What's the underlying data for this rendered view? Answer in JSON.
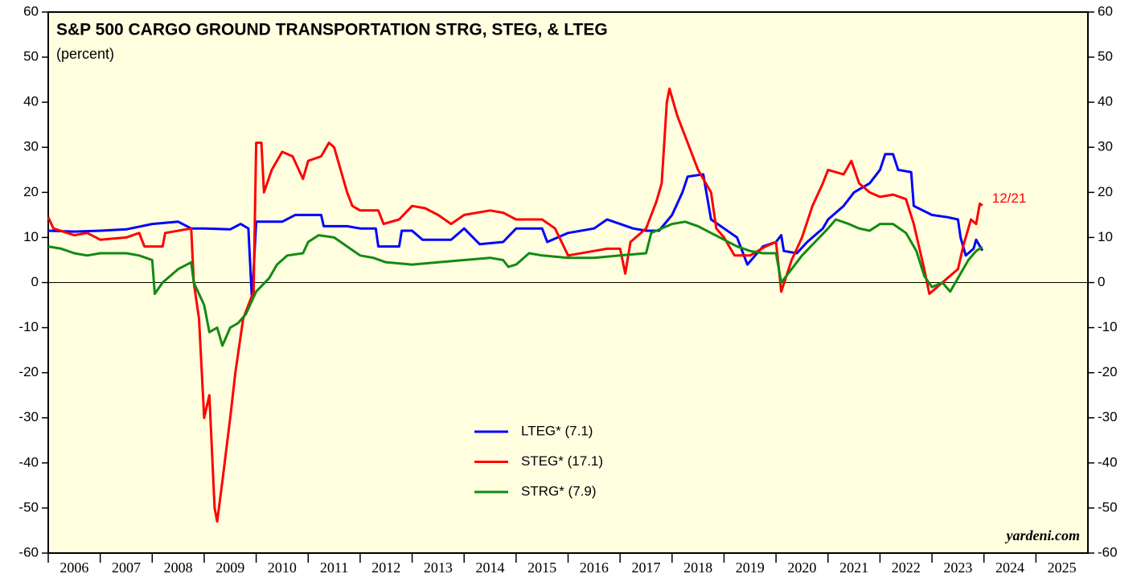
{
  "chart_data": {
    "type": "line",
    "title": "S&P 500 CARGO GROUND TRANSPORTATION STRG, STEG, & LTEG",
    "subtitle": "(percent)",
    "annotation": "12/21",
    "source": "yardeni.com",
    "xlim": [
      2006,
      2026
    ],
    "xticks": [
      2006,
      2007,
      2008,
      2009,
      2010,
      2011,
      2012,
      2013,
      2014,
      2015,
      2016,
      2017,
      2018,
      2019,
      2020,
      2021,
      2022,
      2023,
      2024,
      2025
    ],
    "ylim": [
      -60,
      60
    ],
    "yticks": [
      -60,
      -50,
      -40,
      -30,
      -20,
      -10,
      0,
      10,
      20,
      30,
      40,
      50,
      60
    ],
    "legend": "bottom-center",
    "series": [
      {
        "name": "LTEG* (7.1)",
        "color": "#0000ff",
        "x": [
          2006.0,
          2006.5,
          2007.0,
          2007.5,
          2008.0,
          2008.5,
          2008.75,
          2009.0,
          2009.5,
          2009.7,
          2009.85,
          2009.92,
          2010.0,
          2010.5,
          2010.75,
          2011.0,
          2011.25,
          2011.3,
          2011.75,
          2012.0,
          2012.3,
          2012.35,
          2012.75,
          2012.8,
          2013.0,
          2013.2,
          2013.75,
          2014.0,
          2014.3,
          2014.75,
          2015.0,
          2015.5,
          2015.6,
          2016.0,
          2016.5,
          2016.75,
          2017.0,
          2017.25,
          2017.5,
          2017.75,
          2018.0,
          2018.2,
          2018.3,
          2018.6,
          2018.75,
          2019.0,
          2019.25,
          2019.45,
          2019.6,
          2019.75,
          2020.0,
          2020.1,
          2020.15,
          2020.4,
          2020.6,
          2020.9,
          2021.0,
          2021.3,
          2021.5,
          2021.8,
          2022.0,
          2022.1,
          2022.25,
          2022.35,
          2022.6,
          2022.65,
          2023.0,
          2023.3,
          2023.5,
          2023.55,
          2023.65,
          2023.8,
          2023.85,
          2023.97
        ],
        "values": [
          11.5,
          11.3,
          11.5,
          11.8,
          13,
          13.5,
          12,
          12,
          11.8,
          13,
          12,
          -4,
          13.5,
          13.5,
          15,
          15,
          15,
          12.5,
          12.5,
          12,
          12,
          8,
          8,
          11.5,
          11.5,
          9.5,
          9.5,
          12,
          8.5,
          9,
          12,
          12,
          9,
          11,
          12,
          14,
          13,
          12,
          11.5,
          11.5,
          15,
          20,
          23.5,
          24,
          14,
          12,
          10,
          4,
          6,
          8,
          9,
          10.5,
          7,
          6.5,
          9,
          12,
          14,
          17,
          20,
          22,
          25,
          28.5,
          28.5,
          25,
          24.5,
          17,
          15,
          14.5,
          14,
          10,
          6,
          7.5,
          9.5,
          7.1
        ]
      },
      {
        "name": "STEG* (17.1)",
        "color": "#ff0000",
        "x": [
          2006.0,
          2006.1,
          2006.5,
          2006.75,
          2007.0,
          2007.5,
          2007.75,
          2007.85,
          2008.2,
          2008.25,
          2008.75,
          2008.8,
          2008.9,
          2009.0,
          2009.1,
          2009.2,
          2009.25,
          2009.35,
          2009.5,
          2009.6,
          2009.75,
          2009.85,
          2009.95,
          2010.0,
          2010.1,
          2010.15,
          2010.3,
          2010.5,
          2010.7,
          2010.9,
          2011.0,
          2011.25,
          2011.4,
          2011.5,
          2011.75,
          2011.85,
          2012.0,
          2012.35,
          2012.45,
          2012.75,
          2013.0,
          2013.25,
          2013.5,
          2013.75,
          2014.0,
          2014.5,
          2014.75,
          2015.0,
          2015.5,
          2015.75,
          2016.0,
          2016.5,
          2016.75,
          2017.0,
          2017.1,
          2017.2,
          2017.5,
          2017.7,
          2017.8,
          2017.9,
          2017.95,
          2018.1,
          2018.3,
          2018.5,
          2018.75,
          2018.85,
          2019.0,
          2019.2,
          2019.5,
          2019.8,
          2020.0,
          2020.1,
          2020.3,
          2020.5,
          2020.7,
          2020.9,
          2021.0,
          2021.3,
          2021.45,
          2021.6,
          2021.8,
          2022.0,
          2022.25,
          2022.5,
          2022.65,
          2022.75,
          2022.85,
          2022.95,
          2023.1,
          2023.3,
          2023.5,
          2023.6,
          2023.75,
          2023.85,
          2023.92,
          2023.97
        ],
        "values": [
          14.5,
          12,
          10.5,
          11,
          9.5,
          10,
          11,
          8,
          8,
          11,
          12,
          0,
          -8,
          -30,
          -25,
          -50,
          -53,
          -44,
          -30,
          -20,
          -8,
          -5,
          -2,
          31,
          31,
          20,
          25,
          29,
          28,
          23,
          27,
          28,
          31,
          30,
          20,
          17,
          16,
          16,
          13,
          14,
          17,
          16.5,
          15,
          13,
          15,
          16,
          15.5,
          14,
          14,
          12,
          6,
          7,
          7.5,
          7.5,
          2,
          9,
          12,
          18,
          22,
          40,
          43,
          37,
          31,
          25,
          20,
          12,
          10,
          6,
          6,
          8,
          9,
          -2,
          5,
          10,
          17,
          22,
          25,
          24,
          27,
          22,
          20,
          19,
          19.5,
          18.5,
          13,
          8,
          3,
          -2.5,
          -1,
          1,
          3,
          8,
          14,
          13,
          17.5,
          17.1
        ]
      },
      {
        "name": "STRG* (7.9)",
        "color": "#138a13",
        "x": [
          2006.0,
          2006.25,
          2006.5,
          2006.75,
          2007.0,
          2007.5,
          2007.75,
          2008.0,
          2008.05,
          2008.2,
          2008.5,
          2008.75,
          2008.8,
          2009.0,
          2009.1,
          2009.25,
          2009.35,
          2009.5,
          2009.65,
          2009.8,
          2010.0,
          2010.25,
          2010.4,
          2010.6,
          2010.9,
          2011.0,
          2011.2,
          2011.5,
          2011.75,
          2012.0,
          2012.25,
          2012.5,
          2013.0,
          2013.5,
          2014.0,
          2014.5,
          2014.75,
          2014.85,
          2015.0,
          2015.25,
          2015.5,
          2016.0,
          2016.5,
          2017.0,
          2017.5,
          2017.6,
          2018.0,
          2018.25,
          2018.5,
          2018.75,
          2019.0,
          2019.25,
          2019.5,
          2019.75,
          2020.0,
          2020.1,
          2020.3,
          2020.5,
          2020.75,
          2021.0,
          2021.15,
          2021.4,
          2021.6,
          2021.8,
          2022.0,
          2022.25,
          2022.5,
          2022.7,
          2022.85,
          2023.0,
          2023.2,
          2023.35,
          2023.5,
          2023.7,
          2023.85,
          2023.97
        ],
        "values": [
          8,
          7.5,
          6.5,
          6,
          6.5,
          6.5,
          6,
          5,
          -2.5,
          0,
          3,
          4.5,
          0,
          -5,
          -11,
          -10,
          -14,
          -10,
          -9,
          -7,
          -2,
          1,
          4,
          6,
          6.5,
          9,
          10.5,
          10,
          8,
          6,
          5.5,
          4.5,
          4,
          4.5,
          5,
          5.5,
          5,
          3.5,
          4,
          6.5,
          6,
          5.5,
          5.5,
          6,
          6.5,
          11,
          13,
          13.5,
          12.5,
          11,
          9.5,
          8,
          7,
          6.5,
          6.5,
          0,
          3,
          6,
          9,
          12,
          14,
          13,
          12,
          11.5,
          13,
          13,
          11,
          7,
          1.5,
          -1,
          0,
          -2,
          1,
          5,
          7,
          7.9
        ]
      }
    ]
  }
}
